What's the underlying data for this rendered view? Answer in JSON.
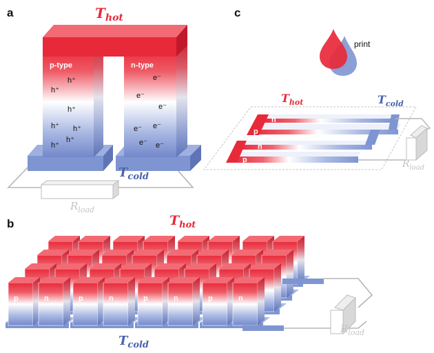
{
  "colors": {
    "hot": "#e8293a",
    "cold": "#7f95d2",
    "mid": "#ffffff",
    "wire": "#b5b5b5"
  },
  "panels": {
    "a": {
      "letter": "a",
      "t_hot": {
        "main": "T",
        "sub": "hot"
      },
      "t_cold": {
        "main": "T",
        "sub": "cold"
      },
      "r_load": {
        "main": "R",
        "sub": "load"
      },
      "p_leg_label": "p-type",
      "n_leg_label": "n-type",
      "p_carriers": [
        "h⁺",
        "h⁺",
        "h⁺",
        "h⁺",
        "h⁺",
        "h⁺",
        "h⁺"
      ],
      "n_carriers": [
        "e⁻",
        "e⁻",
        "e⁻",
        "e⁻",
        "e⁻",
        "e⁻",
        "e⁻"
      ]
    },
    "b": {
      "letter": "b",
      "t_hot": {
        "main": "T",
        "sub": "hot"
      },
      "t_cold": {
        "main": "T",
        "sub": "cold"
      },
      "r_load": {
        "main": "R",
        "sub": "load"
      },
      "p_label": "p",
      "n_label": "n"
    },
    "c": {
      "letter": "c",
      "print_label": "print",
      "t_hot": {
        "main": "T",
        "sub": "hot"
      },
      "t_cold": {
        "main": "T",
        "sub": "cold"
      },
      "r_load": {
        "main": "R",
        "sub": "load"
      },
      "strip_labels": [
        "n",
        "p",
        "n",
        "p"
      ]
    }
  }
}
